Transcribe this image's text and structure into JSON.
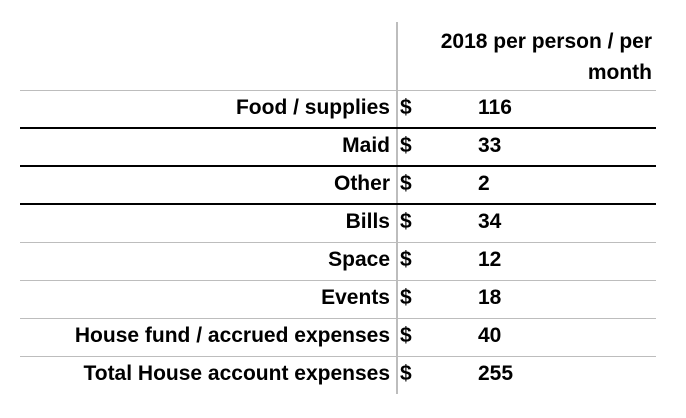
{
  "header": {
    "line1": "2018 per person / per",
    "line2": "month"
  },
  "rows": [
    {
      "label": "Food / supplies",
      "currency": "$",
      "value": "116"
    },
    {
      "label": "Maid",
      "currency": "$",
      "value": "33"
    },
    {
      "label": "Other",
      "currency": "$",
      "value": "2"
    },
    {
      "label": "Bills",
      "currency": "$",
      "value": "34"
    },
    {
      "label": "Space",
      "currency": "$",
      "value": "12"
    },
    {
      "label": "Events",
      "currency": "$",
      "value": "18"
    },
    {
      "label": "House fund / accrued expenses",
      "currency": "$",
      "value": "40"
    },
    {
      "label": "Total House account expenses",
      "currency": "$",
      "value": "255"
    }
  ]
}
